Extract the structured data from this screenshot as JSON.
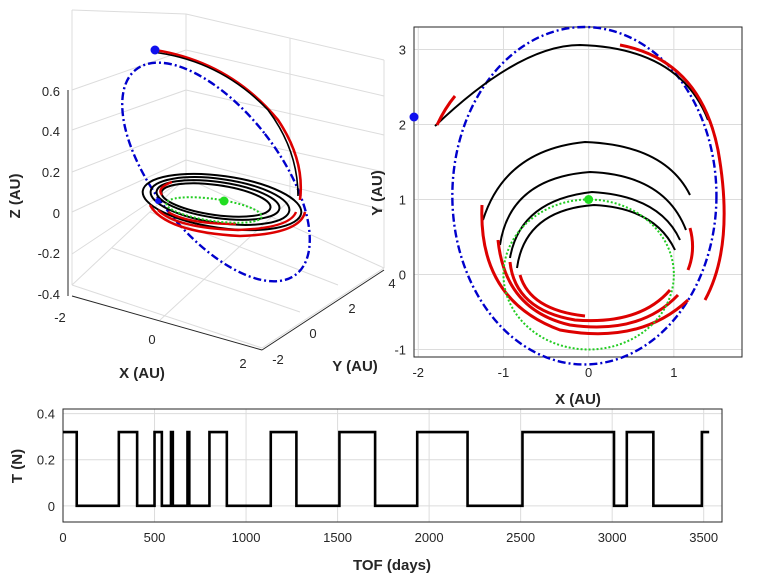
{
  "chart_data": [
    {
      "type": "line",
      "panel": "3d-trajectory",
      "xlabel": "X (AU)",
      "ylabel": "Y (AU)",
      "zlabel": "Z (AU)",
      "x_ticks": [
        "-2",
        "0",
        "2"
      ],
      "y_ticks": [
        "-2",
        "0",
        "2",
        "4"
      ],
      "z_ticks": [
        "-0.4",
        "-0.2",
        "0",
        "0.2",
        "0.4",
        "0.6"
      ],
      "zlim": [
        -0.4,
        0.7
      ],
      "series": [
        {
          "name": "target orbit",
          "style": "dash-dot",
          "color": "#0000cc"
        },
        {
          "name": "coast arcs",
          "style": "solid",
          "color": "#000000"
        },
        {
          "name": "thrust arcs",
          "style": "solid",
          "color": "#dd0000"
        },
        {
          "name": "departure orbit",
          "style": "dotted",
          "color": "#22cc22"
        }
      ],
      "markers": [
        {
          "name": "arrival",
          "color": "#1010ee"
        },
        {
          "name": "departure",
          "color": "#22dd22"
        }
      ]
    },
    {
      "type": "line",
      "panel": "xy-projection",
      "xlabel": "X (AU)",
      "ylabel": "Y (AU)",
      "x_ticks": [
        "-2",
        "-1",
        "0",
        "1"
      ],
      "y_ticks": [
        "-1",
        "0",
        "1",
        "2",
        "3"
      ],
      "xlim": [
        -2.05,
        1.8
      ],
      "ylim": [
        -1.1,
        3.3
      ],
      "target_orbit": {
        "center": [
          -0.05,
          1.05
        ],
        "rx": 1.55,
        "ry": 2.25
      },
      "departure_orbit": {
        "center": [
          0,
          0
        ],
        "r": 1.0
      },
      "markers": [
        {
          "name": "arrival",
          "x": -2.05,
          "y": 2.1,
          "color": "#1010ee"
        },
        {
          "name": "departure",
          "x": 0,
          "y": 1.0,
          "color": "#22dd22"
        }
      ]
    },
    {
      "type": "line",
      "panel": "thrust-profile",
      "xlabel": "TOF (days)",
      "ylabel": "T (N)",
      "x_ticks": [
        "0",
        "500",
        "1000",
        "1500",
        "2000",
        "2500",
        "3000",
        "3500"
      ],
      "y_ticks": [
        "0",
        "0.2",
        "0.4"
      ],
      "xlim": [
        0,
        3600
      ],
      "ylim": [
        -0.07,
        0.42
      ],
      "thrust_level": 0.32,
      "thrust_on_intervals": [
        [
          0,
          75
        ],
        [
          305,
          405
        ],
        [
          500,
          540
        ],
        [
          590,
          600
        ],
        [
          680,
          690
        ],
        [
          800,
          895
        ],
        [
          1135,
          1275
        ],
        [
          1510,
          1705
        ],
        [
          1935,
          2210
        ],
        [
          2510,
          3010
        ],
        [
          3080,
          3225
        ],
        [
          3490,
          3530
        ]
      ]
    }
  ]
}
